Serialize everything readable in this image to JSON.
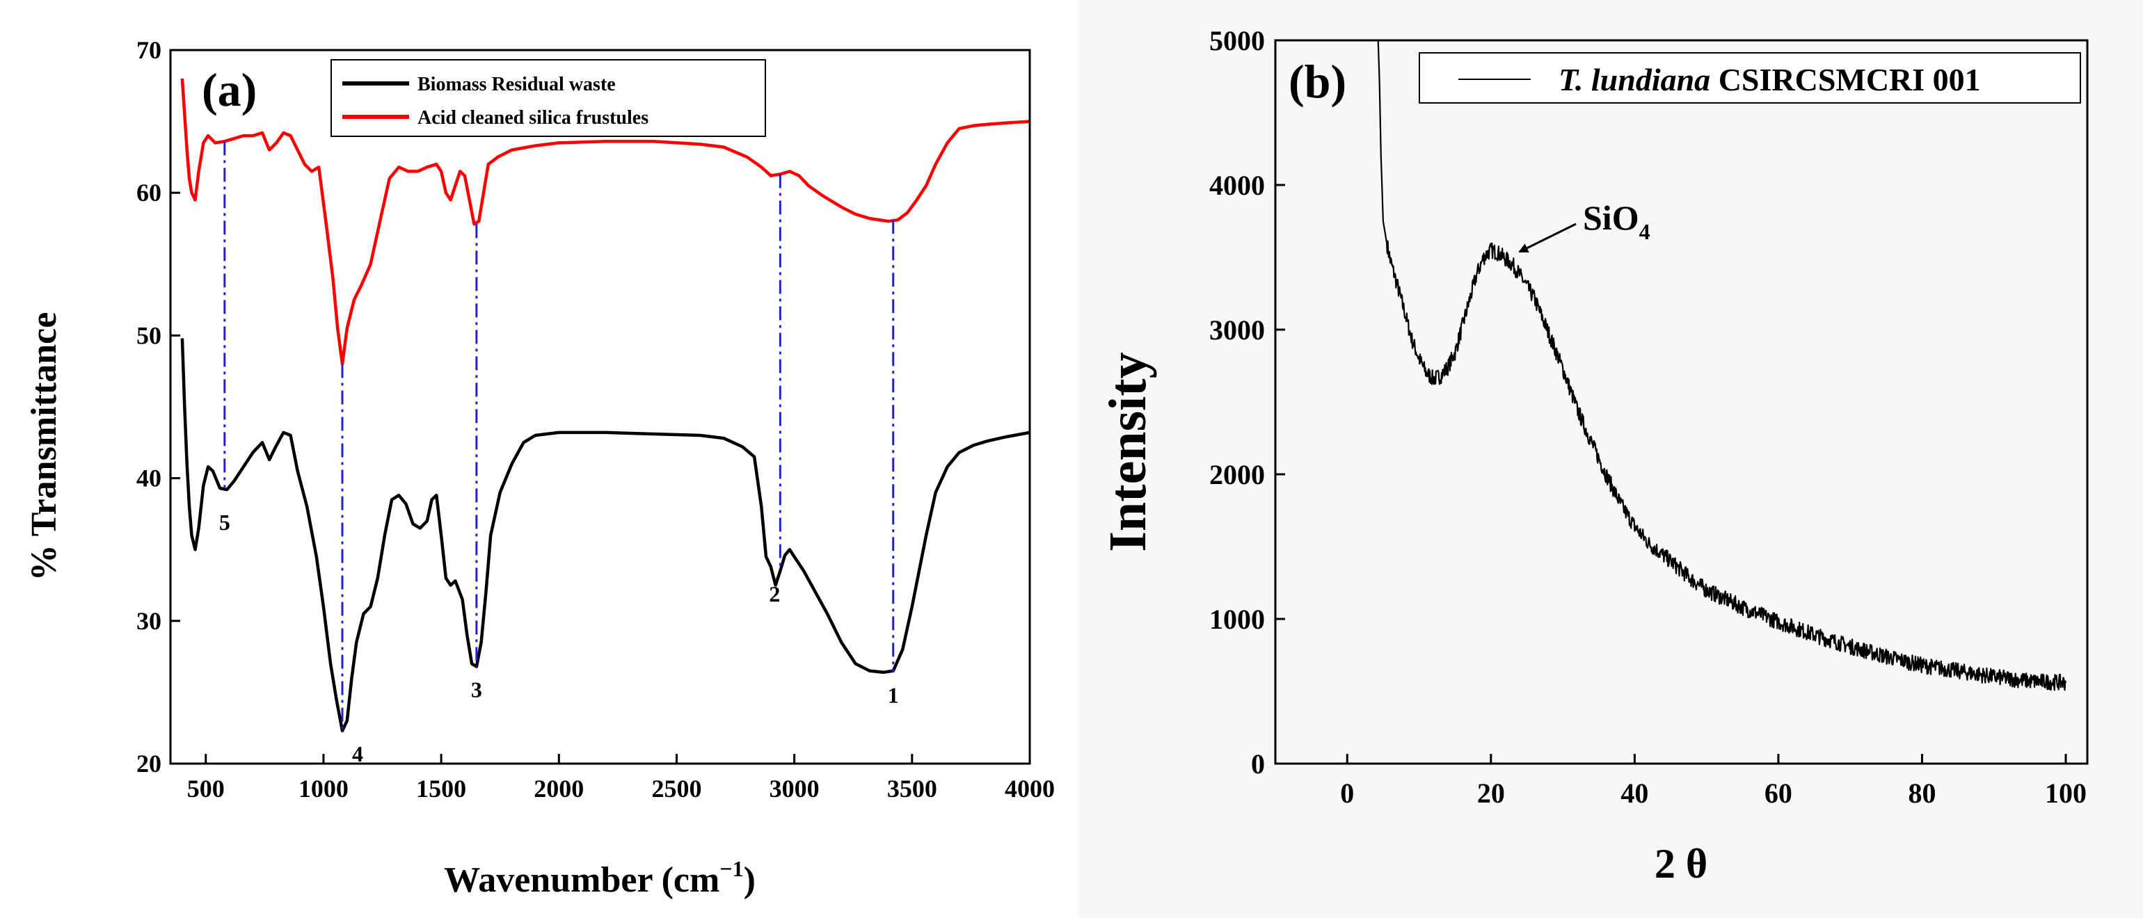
{
  "chart_data": [
    {
      "type": "line",
      "panel_label": "(a)",
      "xlabel": "Wavenumber (cm",
      "xlabel_sup": "−1",
      "xlabel_close": ")",
      "ylabel": "% Transmittance",
      "xlim": [
        350,
        4000
      ],
      "ylim": [
        20,
        70
      ],
      "xticks": [
        500,
        1000,
        1500,
        2000,
        2500,
        3000,
        3500,
        4000
      ],
      "yticks": [
        20,
        30,
        40,
        50,
        60,
        70
      ],
      "legend_position": "top",
      "series": [
        {
          "name": "Biomass Residual waste",
          "color": "#000000",
          "x": [
            400,
            410,
            420,
            430,
            440,
            455,
            470,
            490,
            510,
            530,
            560,
            590,
            620,
            660,
            700,
            740,
            770,
            800,
            830,
            860,
            890,
            930,
            970,
            1000,
            1030,
            1055,
            1080,
            1100,
            1120,
            1140,
            1170,
            1200,
            1230,
            1260,
            1290,
            1320,
            1350,
            1380,
            1410,
            1440,
            1460,
            1480,
            1500,
            1520,
            1540,
            1560,
            1590,
            1610,
            1630,
            1650,
            1670,
            1690,
            1710,
            1750,
            1800,
            1850,
            1900,
            2000,
            2200,
            2400,
            2600,
            2700,
            2780,
            2830,
            2860,
            2880,
            2900,
            2920,
            2940,
            2960,
            2980,
            3000,
            3040,
            3080,
            3140,
            3200,
            3260,
            3320,
            3380,
            3420,
            3460,
            3500,
            3560,
            3600,
            3650,
            3700,
            3760,
            3820,
            3900,
            4000
          ],
          "values": [
            49.8,
            45,
            41,
            38,
            36,
            35,
            36.5,
            39.5,
            40.8,
            40.5,
            39.3,
            39.2,
            39.8,
            40.8,
            41.8,
            42.5,
            41.3,
            42.3,
            43.2,
            43,
            40.5,
            38,
            34.5,
            31,
            27,
            24.5,
            22.3,
            23,
            26,
            28.5,
            30.5,
            31,
            33,
            36,
            38.5,
            38.8,
            38.2,
            36.8,
            36.5,
            37,
            38.5,
            38.8,
            36,
            33,
            32.5,
            32.8,
            31.5,
            29,
            27,
            26.8,
            28.5,
            32,
            36,
            39,
            41,
            42.5,
            43,
            43.2,
            43.2,
            43.1,
            43,
            42.8,
            42.2,
            41.5,
            38,
            34.5,
            33.8,
            32.5,
            33.5,
            34.6,
            35,
            34.5,
            33.5,
            32.3,
            30.5,
            28.5,
            27,
            26.5,
            26.4,
            26.5,
            28,
            31,
            36,
            39,
            40.8,
            41.8,
            42.3,
            42.6,
            42.9,
            43.2
          ]
        },
        {
          "name": "Acid cleaned silica frustules",
          "color": "#ff0000",
          "x": [
            400,
            410,
            420,
            430,
            440,
            455,
            470,
            490,
            510,
            540,
            580,
            620,
            660,
            700,
            740,
            770,
            800,
            830,
            860,
            890,
            920,
            950,
            980,
            1010,
            1040,
            1060,
            1080,
            1100,
            1130,
            1160,
            1200,
            1240,
            1280,
            1320,
            1360,
            1400,
            1440,
            1480,
            1500,
            1520,
            1540,
            1560,
            1580,
            1600,
            1620,
            1640,
            1660,
            1680,
            1700,
            1740,
            1800,
            1900,
            2000,
            2200,
            2400,
            2600,
            2700,
            2800,
            2860,
            2900,
            2940,
            2980,
            3020,
            3060,
            3120,
            3200,
            3260,
            3320,
            3400,
            3440,
            3480,
            3520,
            3560,
            3600,
            3650,
            3700,
            3760,
            3820,
            3900,
            4000
          ],
          "values": [
            68,
            65.5,
            63,
            61,
            60,
            59.5,
            61.5,
            63.5,
            64,
            63.5,
            63.6,
            63.8,
            64,
            64,
            64.2,
            63,
            63.5,
            64.2,
            64,
            63,
            62,
            61.5,
            61.8,
            58,
            54,
            50.5,
            48,
            50.5,
            52.5,
            53.5,
            55,
            58,
            61,
            61.8,
            61.5,
            61.5,
            61.8,
            62,
            61.5,
            60,
            59.5,
            60.5,
            61.5,
            61.2,
            59.5,
            57.8,
            58,
            60,
            62,
            62.5,
            63,
            63.3,
            63.5,
            63.6,
            63.6,
            63.4,
            63.2,
            62.5,
            61.8,
            61.2,
            61.3,
            61.5,
            61.2,
            60.5,
            59.8,
            59,
            58.5,
            58.2,
            58,
            58.1,
            58.6,
            59.5,
            60.5,
            62,
            63.5,
            64.5,
            64.7,
            64.8,
            64.9,
            65
          ]
        }
      ],
      "markers": [
        {
          "x": 3420,
          "label": "1",
          "y_top": 58.1,
          "y_bottom": 26.4
        },
        {
          "x": 2940,
          "label": "2",
          "y_top": 61.3,
          "y_bottom": 33.5
        },
        {
          "x": 1650,
          "label": "3",
          "y_top": 57.8,
          "y_bottom": 26.8
        },
        {
          "x": 1080,
          "label": "4",
          "y_top": 48.0,
          "y_bottom": 22.3
        },
        {
          "x": 580,
          "label": "5",
          "y_top": 63.6,
          "y_bottom": 39.3
        }
      ]
    },
    {
      "type": "line",
      "panel_label": "(b)",
      "xlabel": "2 θ",
      "ylabel": "Intensity",
      "xlim": [
        -10,
        103
      ],
      "ylim": [
        0,
        5000
      ],
      "xticks": [
        0,
        20,
        40,
        60,
        80,
        100
      ],
      "yticks": [
        0,
        1000,
        2000,
        3000,
        4000,
        5000
      ],
      "legend_position": "top-right",
      "annotation_text": "SiO",
      "annotation_sub": "4",
      "series": [
        {
          "name_italic": "T. lundiana",
          "name_rest": " CSIRCSMCRI 001",
          "color": "#000000",
          "x": [
            4.3,
            4.5,
            4.7,
            5,
            5.5,
            6,
            7,
            8,
            9,
            10,
            11,
            12,
            13,
            14,
            15,
            16,
            17,
            18,
            19,
            20,
            21,
            22,
            23,
            24,
            25,
            26,
            28,
            30,
            32,
            34,
            36,
            38,
            40,
            42,
            45,
            48,
            50,
            55,
            60,
            65,
            70,
            75,
            80,
            85,
            90,
            95,
            100
          ],
          "values": [
            5000,
            4700,
            4200,
            3750,
            3600,
            3480,
            3300,
            3120,
            2930,
            2800,
            2700,
            2660,
            2680,
            2740,
            2840,
            3020,
            3200,
            3380,
            3500,
            3550,
            3530,
            3490,
            3450,
            3380,
            3300,
            3220,
            2980,
            2730,
            2450,
            2220,
            2000,
            1800,
            1640,
            1520,
            1400,
            1270,
            1200,
            1080,
            980,
            890,
            810,
            740,
            680,
            640,
            600,
            570,
            560
          ]
        }
      ]
    }
  ]
}
